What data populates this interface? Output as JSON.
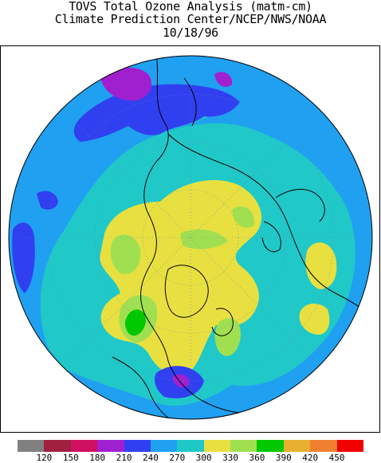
{
  "header": {
    "title": "TOVS Total Ozone Analysis (matm-cm)",
    "subtitle": "Climate Prediction Center/NCEP/NWS/NOAA",
    "date": "10/18/96"
  },
  "legend": {
    "bins": [
      {
        "color": "#808080"
      },
      {
        "color": "#a02040"
      },
      {
        "color": "#d01060"
      },
      {
        "color": "#a020d0"
      },
      {
        "color": "#3040f0"
      },
      {
        "color": "#20a0f0"
      },
      {
        "color": "#20c8c8"
      },
      {
        "color": "#e8e040"
      },
      {
        "color": "#a0e050"
      },
      {
        "color": "#00c800"
      },
      {
        "color": "#e8b030"
      },
      {
        "color": "#f08030"
      },
      {
        "color": "#f00000"
      }
    ],
    "ticks": [
      "120",
      "150",
      "180",
      "210",
      "240",
      "270",
      "300",
      "330",
      "360",
      "390",
      "420",
      "450"
    ]
  },
  "map": {
    "projection": "north-polar-stereographic",
    "background_color": "#20a0f0",
    "coastline_color": "#000000",
    "regions": [
      {
        "level": "270-300",
        "color": "#20c8c8"
      },
      {
        "level": "300-330",
        "color": "#e8e040"
      },
      {
        "level": "330-360",
        "color": "#a0e050"
      },
      {
        "level": "360-390",
        "color": "#00c800"
      },
      {
        "level": "210-240",
        "color": "#3040f0"
      },
      {
        "level": "180-210",
        "color": "#a020d0"
      }
    ]
  }
}
